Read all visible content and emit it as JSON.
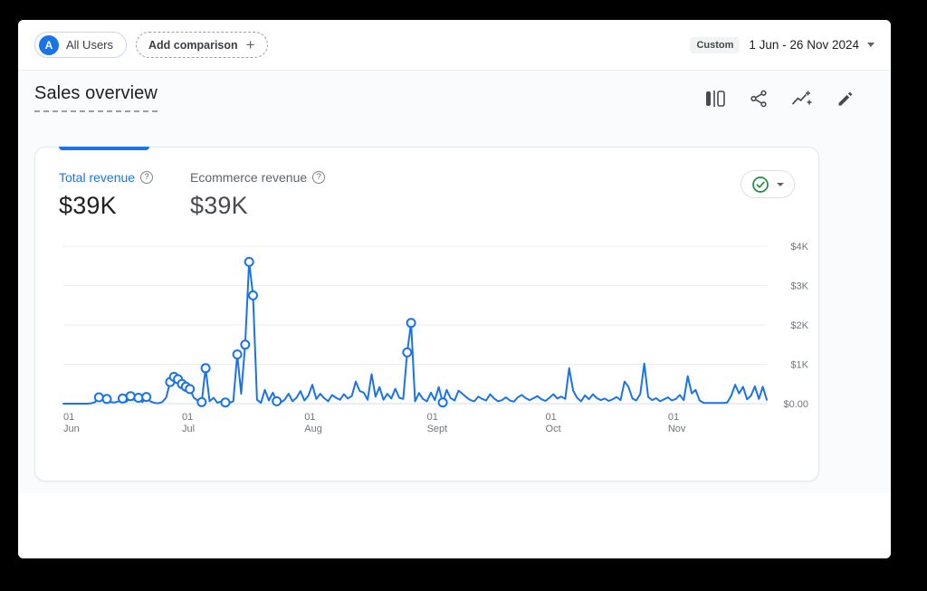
{
  "topbar": {
    "avatar_letter": "A",
    "audience_label": "All Users",
    "add_comparison_label": "Add comparison",
    "date_badge": "Custom",
    "date_range": "1 Jun - 26 Nov 2024"
  },
  "page": {
    "title": "Sales overview"
  },
  "toolbar": {
    "icons": [
      "ab-comparison",
      "share",
      "insights",
      "edit"
    ]
  },
  "icons": {
    "plus": "+",
    "question": "?"
  },
  "card": {
    "metrics": [
      {
        "label": "Total revenue",
        "value": "$39K",
        "selected": true
      },
      {
        "label": "Ecommerce revenue",
        "value": "$39K",
        "selected": false
      }
    ],
    "quality_badge": "data-quality-ok"
  },
  "colors": {
    "accent": "#1a73e8",
    "green": "#1e8e3e",
    "text_dark": "#202124",
    "text_gray": "#5f6368",
    "grid": "#ebedf0",
    "axis": "#dadce0"
  },
  "chart_data": {
    "type": "line",
    "title": "Total revenue by day, 1 Jun - 26 Nov 2024",
    "xlabel": "",
    "ylabel": "",
    "ylim": [
      0,
      4000
    ],
    "grid": true,
    "y_ticks": [
      "$4K",
      "$3K",
      "$2K",
      "$1K",
      "$0.00"
    ],
    "x_ticks": [
      {
        "day": 0,
        "line1": "01",
        "line2": "Jun"
      },
      {
        "day": 30,
        "line1": "01",
        "line2": "Jul"
      },
      {
        "day": 61,
        "line1": "01",
        "line2": "Aug"
      },
      {
        "day": 92,
        "line1": "01",
        "line2": "Sept"
      },
      {
        "day": 122,
        "line1": "01",
        "line2": "Oct"
      },
      {
        "day": 153,
        "line1": "01",
        "line2": "Nov"
      }
    ],
    "series": [
      {
        "name": "Total revenue",
        "color": "#1a73e8",
        "values": [
          0,
          0,
          0,
          0,
          0,
          0,
          0,
          10,
          40,
          160,
          80,
          120,
          40,
          30,
          60,
          130,
          50,
          190,
          90,
          150,
          40,
          170,
          60,
          20,
          10,
          40,
          150,
          550,
          680,
          620,
          500,
          430,
          370,
          150,
          80,
          40,
          900,
          60,
          150,
          20,
          60,
          30,
          20,
          60,
          1250,
          250,
          1500,
          3600,
          2750,
          100,
          20,
          350,
          80,
          280,
          60,
          30,
          100,
          250,
          60,
          150,
          320,
          80,
          200,
          480,
          120,
          250,
          140,
          60,
          220,
          150,
          100,
          240,
          130,
          200,
          560,
          320,
          280,
          100,
          750,
          180,
          420,
          100,
          250,
          130,
          380,
          150,
          120,
          1300,
          2050,
          60,
          270,
          120,
          60,
          280,
          90,
          420,
          30,
          350,
          140,
          80,
          330,
          250,
          160,
          90,
          60,
          180,
          120,
          80,
          240,
          130,
          60,
          90,
          160,
          80,
          50,
          160,
          220,
          140,
          90,
          140,
          190,
          110,
          70,
          150,
          240,
          130,
          180,
          120,
          900,
          330,
          150,
          60,
          210,
          110,
          240,
          140,
          90,
          130,
          70,
          110,
          170,
          90,
          560,
          430,
          130,
          80,
          250,
          1020,
          170,
          90,
          140,
          60,
          110,
          160,
          80,
          120,
          220,
          90,
          700,
          260,
          350,
          80,
          20,
          15,
          15,
          15,
          15,
          15,
          30,
          200,
          480,
          260,
          430,
          110,
          200,
          440,
          120,
          430,
          100
        ]
      }
    ],
    "marker_days": [
      9,
      11,
      15,
      17,
      19,
      21,
      27,
      28,
      29,
      30,
      31,
      32,
      35,
      36,
      41,
      44,
      46,
      47,
      48,
      54,
      87,
      88,
      96
    ]
  }
}
